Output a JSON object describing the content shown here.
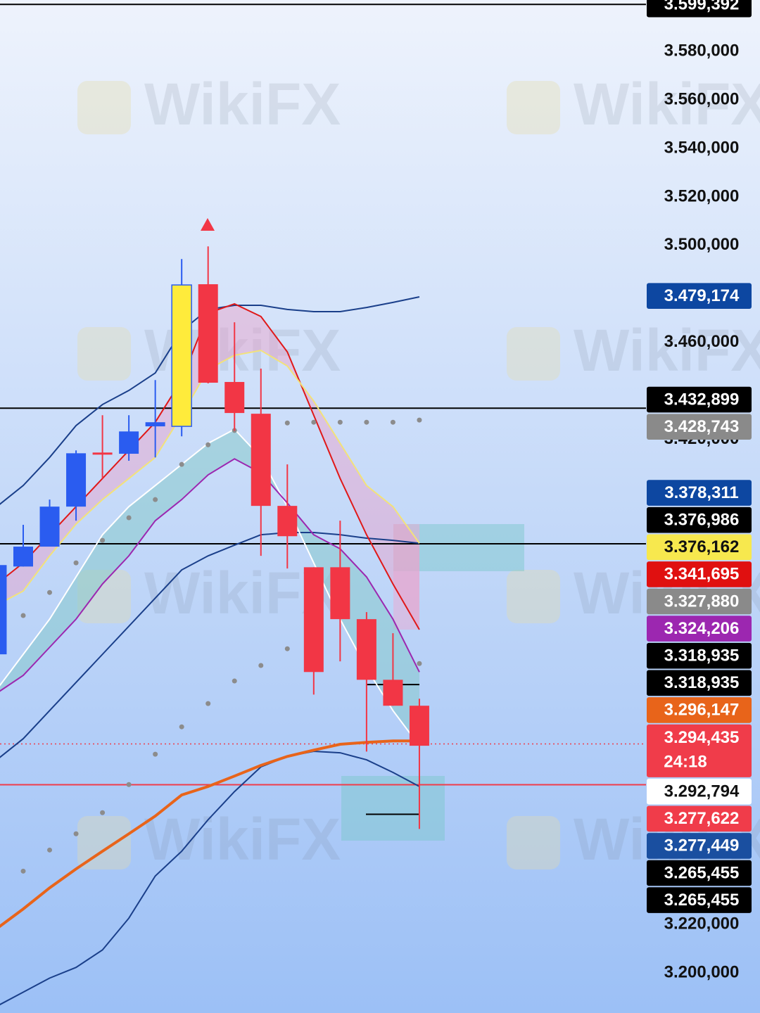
{
  "chart_data": {
    "type": "candlestick",
    "watermark": "WikiFX",
    "ylim": [
      3.1835,
      3.6012
    ],
    "yticks": [
      {
        "value": 3.58,
        "label": "3.580,000"
      },
      {
        "value": 3.56,
        "label": "3.560,000"
      },
      {
        "value": 3.54,
        "label": "3.540,000"
      },
      {
        "value": 3.52,
        "label": "3.520,000"
      },
      {
        "value": 3.5,
        "label": "3.500,000"
      },
      {
        "value": 3.46,
        "label": "3.460,000"
      },
      {
        "value": 3.42,
        "label": "3.420,000"
      },
      {
        "value": 3.22,
        "label": "3.220,000"
      },
      {
        "value": 3.2,
        "label": "3.200,000"
      }
    ],
    "candles": {
      "open": [
        3.3314,
        3.3676,
        3.3758,
        3.3923,
        3.4146,
        3.4141,
        3.4254,
        3.4254,
        3.484,
        3.4437,
        3.4306,
        3.3926,
        3.3673,
        3.3673,
        3.3459,
        3.3209,
        3.3102
      ],
      "high": [
        3.3691,
        3.3848,
        3.3952,
        3.4155,
        3.43,
        3.43,
        3.4445,
        3.4944,
        3.4996,
        3.4683,
        3.4492,
        3.4097,
        3.3673,
        3.3865,
        3.3488,
        3.3401,
        3.3131
      ],
      "low": [
        3.3314,
        3.3676,
        3.3758,
        3.3865,
        3.4039,
        3.4112,
        3.4126,
        3.4213,
        3.4431,
        3.4236,
        3.372,
        3.3668,
        3.3148,
        3.3285,
        3.2913,
        3.3102,
        3.2594
      ],
      "close": [
        3.3682,
        3.3758,
        3.3923,
        3.4143,
        3.414,
        3.4233,
        3.4271,
        3.4837,
        3.4434,
        3.4309,
        3.3926,
        3.3801,
        3.3241,
        3.3459,
        3.3209,
        3.3102,
        3.2937
      ],
      "colors": [
        "#2a5cf0",
        "#2a5cf0",
        "#2a5cf0",
        "#2a5cf0",
        "#f23645",
        "#2a5cf0",
        "#2a5cf0",
        "#ffeb3b",
        "#f23645",
        "#f23645",
        "#f23645",
        "#f23645",
        "#f23645",
        "#f23645",
        "#f23645",
        "#f23645",
        "#f23645"
      ]
    },
    "series": [
      {
        "style": "line",
        "color": "#1a3f8a",
        "values": [
          3.3923,
          3.401,
          3.4126,
          3.4257,
          3.4344,
          3.4402,
          3.4474,
          3.4648,
          3.4736,
          3.4753,
          3.4753,
          3.4736,
          3.4727,
          3.4727,
          3.4744,
          3.4765,
          3.4788
        ]
      },
      {
        "style": "line",
        "color": "#1a3f8a",
        "values": [
          3.2879,
          3.2966,
          3.3082,
          3.3198,
          3.3314,
          3.343,
          3.3546,
          3.3662,
          3.372,
          3.3764,
          3.3807,
          3.3816,
          3.3816,
          3.3807,
          3.3793,
          3.3784,
          3.3772
        ]
      },
      {
        "style": "line",
        "color": "#1a3f8a",
        "values": [
          3.1863,
          3.1921,
          3.1979,
          3.2023,
          3.2095,
          3.2226,
          3.24,
          3.2502,
          3.2632,
          3.2748,
          3.285,
          3.2893,
          3.2914,
          3.2908,
          3.2879,
          3.2827,
          3.2769
        ]
      },
      {
        "style": "line",
        "color": "#e01818",
        "values": [
          3.3604,
          3.3691,
          3.3807,
          3.3923,
          3.4039,
          3.4155,
          3.4271,
          3.4445,
          3.4721,
          3.4759,
          3.4707,
          3.4561,
          3.43,
          3.4039,
          3.3807,
          3.3604,
          3.3416
        ]
      },
      {
        "style": "line",
        "color": "#f2e27a",
        "values": [
          3.3517,
          3.3575,
          3.372,
          3.3851,
          3.3952,
          3.4039,
          3.4126,
          3.43,
          3.4489,
          3.4547,
          3.4567,
          3.4503,
          3.4358,
          3.4184,
          3.401,
          3.3923,
          3.3772
        ]
      },
      {
        "style": "line",
        "color": "#ffffff",
        "values": [
          3.3169,
          3.3314,
          3.3459,
          3.3633,
          3.3807,
          3.3923,
          3.401,
          3.4097,
          3.4184,
          3.4242,
          3.4126,
          3.3923,
          3.3691,
          3.3459,
          3.3256,
          3.3082,
          3.2937
        ]
      },
      {
        "style": "line",
        "color": "#9c27b0",
        "values": [
          3.3154,
          3.3227,
          3.3343,
          3.3459,
          3.3604,
          3.372,
          3.3865,
          3.3952,
          3.4054,
          3.412,
          3.4062,
          3.3938,
          3.3807,
          3.3749,
          3.3633,
          3.3459,
          3.3241
        ]
      },
      {
        "style": "line",
        "color": "#e8641a",
        "values": [
          3.2183,
          3.2264,
          3.2351,
          3.2429,
          3.2502,
          3.2574,
          3.2647,
          3.2734,
          3.2769,
          3.2812,
          3.2856,
          3.2893,
          3.2919,
          3.2943,
          3.2951,
          3.2957,
          3.2957
        ]
      },
      {
        "style": "dots",
        "color": "#8c8c8c",
        "values": [
          null,
          3.3474,
          3.3569,
          3.3691,
          3.3784,
          3.3877,
          3.3952,
          3.4097,
          3.4178,
          3.4237,
          null,
          3.4268,
          3.4271,
          3.4271,
          3.4271,
          3.4271,
          3.428
        ]
      },
      {
        "style": "dots",
        "color": "#8c8c8c",
        "values": [
          null,
          3.242,
          3.2507,
          3.2574,
          3.2661,
          3.2777,
          3.2902,
          3.3015,
          3.3111,
          3.3204,
          3.3268,
          3.3337,
          null,
          null,
          null,
          null,
          3.3276
        ]
      }
    ],
    "price_tags": [
      {
        "value": 3.599392,
        "label": "3.599,392",
        "color": "#000000",
        "text_color": "#ffffff",
        "line": "full"
      },
      {
        "value": 3.479174,
        "label": "3.479,174",
        "color": "#0d47a1",
        "text_color": "#ffffff"
      },
      {
        "value": 3.432899,
        "label": "3.432,899",
        "color": "#000000",
        "text_color": "#ffffff",
        "line": "full"
      },
      {
        "value": 3.428743,
        "label": "3.428,743",
        "color": "#8a8a8a",
        "text_color": "#ffffff"
      },
      {
        "value": 3.378311,
        "label": "3.378,311",
        "color": "#0d47a1",
        "text_color": "#ffffff"
      },
      {
        "value": 3.376986,
        "label": "3.376,986",
        "color": "#000000",
        "text_color": "#ffffff",
        "line": "full"
      },
      {
        "value": 3.376162,
        "label": "3.376,162",
        "color": "#f7e84e",
        "text_color": "#111111"
      },
      {
        "value": 3.341695,
        "label": "3.341,695",
        "color": "#e01010",
        "text_color": "#ffffff"
      },
      {
        "value": 3.32788,
        "label": "3.327,880",
        "color": "#8a8a8a",
        "text_color": "#ffffff"
      },
      {
        "value": 3.324206,
        "label": "3.324,206",
        "color": "#9c27b0",
        "text_color": "#ffffff"
      },
      {
        "value": 3.318935,
        "label": "3.318,935",
        "color": "#000000",
        "text_color": "#ffffff",
        "line": "short"
      },
      {
        "value": 3.318935,
        "label": "3.318,935",
        "color": "#000000",
        "text_color": "#ffffff"
      },
      {
        "value": 3.296147,
        "label": "3.296,147",
        "color": "#e8641a",
        "text_color": "#ffffff"
      },
      {
        "value": 3.294435,
        "label": "3.294,435",
        "countdown": "24:18",
        "color": "#f03c4a",
        "text_color": "#ffffff",
        "line": "dotted"
      },
      {
        "value": 3.292794,
        "label": "3.292,794",
        "color": "#ffffff",
        "text_color": "#111111"
      },
      {
        "value": 3.277622,
        "label": "3.277,622",
        "color": "#f03c4a",
        "text_color": "#ffffff",
        "line": "full"
      },
      {
        "value": 3.277449,
        "label": "3.277,449",
        "color": "#1a4fa0",
        "text_color": "#ffffff"
      },
      {
        "value": 3.265455,
        "label": "3.265,455",
        "color": "#000000",
        "text_color": "#ffffff",
        "line": "short"
      },
      {
        "value": 3.265455,
        "label": "3.265,455",
        "color": "#000000",
        "text_color": "#ffffff"
      }
    ]
  }
}
